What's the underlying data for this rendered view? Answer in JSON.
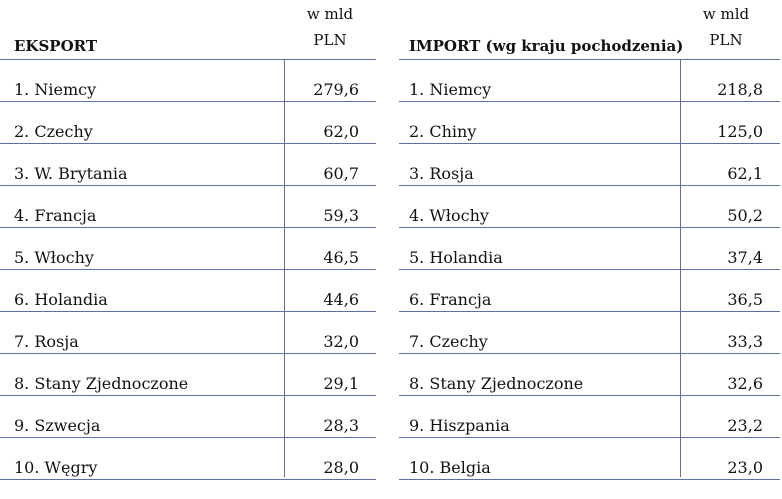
{
  "export": {
    "title": "EKSPORT",
    "unit_line1": "w mld",
    "unit_line2": "PLN",
    "rows": [
      {
        "label": "1. Niemcy",
        "value": "279,6"
      },
      {
        "label": "2. Czechy",
        "value": "62,0"
      },
      {
        "label": "3. W. Brytania",
        "value": "60,7"
      },
      {
        "label": "4. Francja",
        "value": "59,3"
      },
      {
        "label": "5. Włochy",
        "value": "46,5"
      },
      {
        "label": "6. Holandia",
        "value": "44,6"
      },
      {
        "label": "7. Rosja",
        "value": "32,0"
      },
      {
        "label": "8. Stany Zjednoczone",
        "value": "29,1"
      },
      {
        "label": "9. Szwecja",
        "value": "28,3"
      },
      {
        "label": "10. Węgry",
        "value": "28,0"
      }
    ]
  },
  "import": {
    "title": "IMPORT (wg kraju pochodzenia)",
    "unit_line1": "w mld",
    "unit_line2": "PLN",
    "rows": [
      {
        "label": "1. Niemcy",
        "value": "218,8"
      },
      {
        "label": "2. Chiny",
        "value": "125,0"
      },
      {
        "label": "3. Rosja",
        "value": "62,1"
      },
      {
        "label": "4. Włochy",
        "value": "50,2"
      },
      {
        "label": "5. Holandia",
        "value": "37,4"
      },
      {
        "label": "6. Francja",
        "value": "36,5"
      },
      {
        "label": "7. Czechy",
        "value": "33,3"
      },
      {
        "label": "8. Stany Zjednoczone",
        "value": "32,6"
      },
      {
        "label": "9. Hiszpania",
        "value": "23,2"
      },
      {
        "label": "10. Belgia",
        "value": "23,0"
      }
    ]
  }
}
